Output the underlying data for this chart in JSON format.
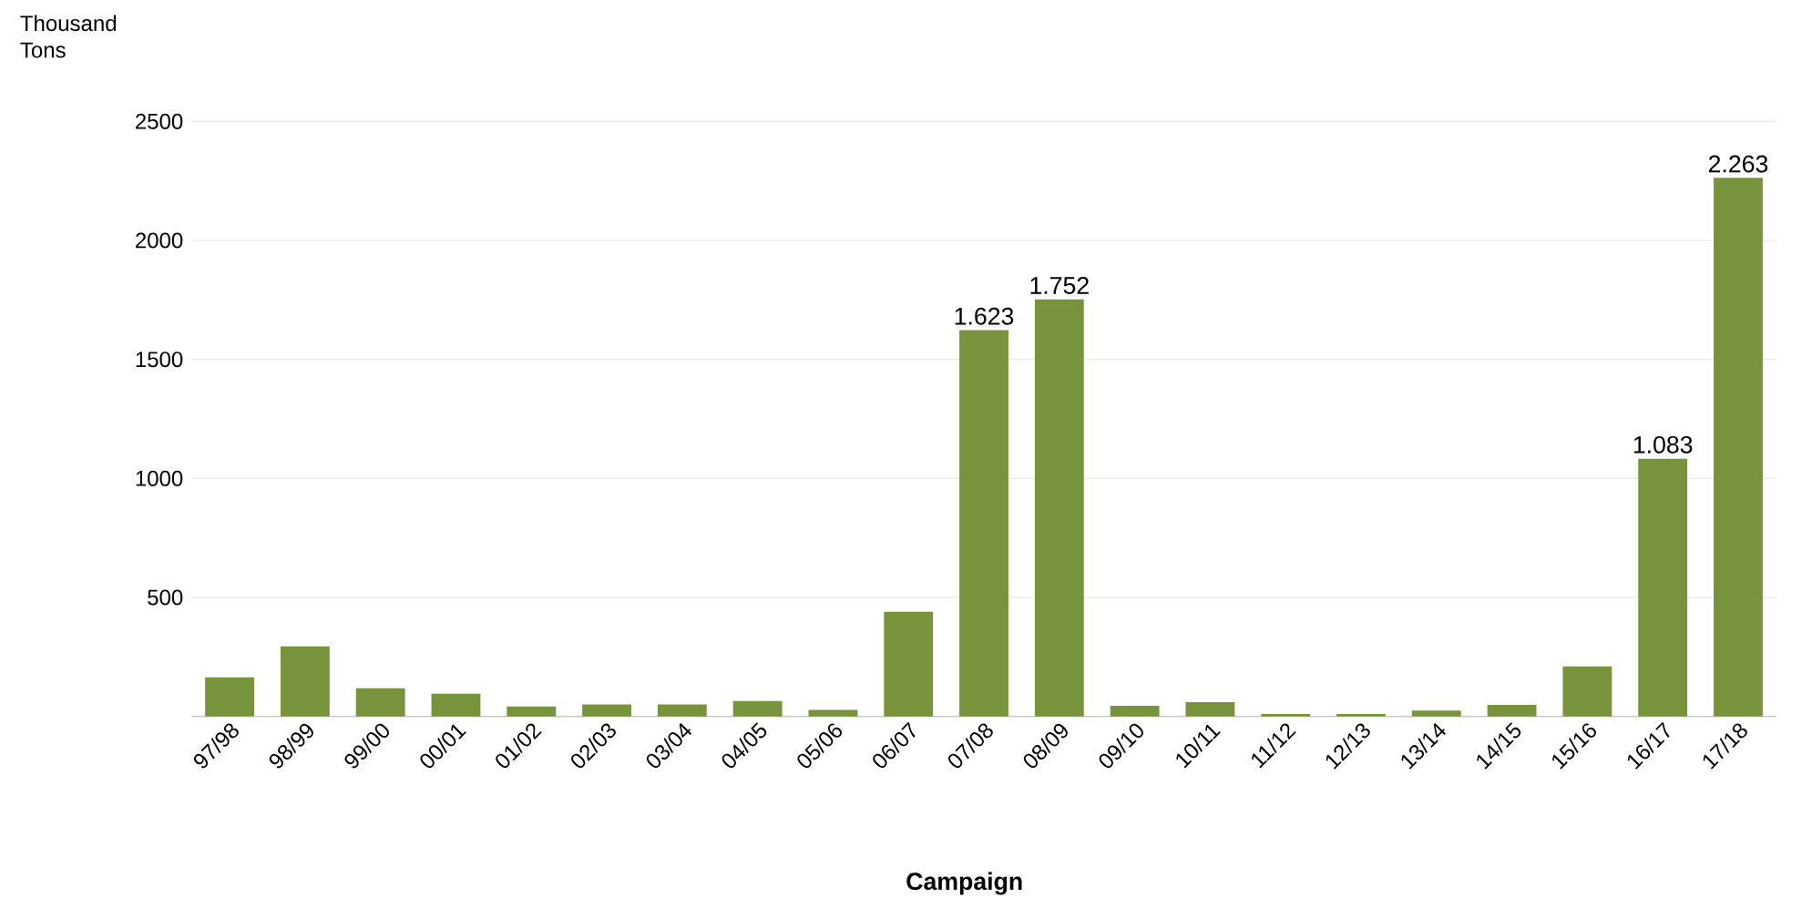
{
  "chart_data": {
    "type": "bar",
    "xlabel": "Campaign",
    "ylabel": "Thousand Tons",
    "categories": [
      "97/98",
      "98/99",
      "99/00",
      "00/01",
      "01/02",
      "02/03",
      "03/04",
      "04/05",
      "05/06",
      "06/07",
      "07/08",
      "08/09",
      "09/10",
      "10/11",
      "11/12",
      "12/13",
      "13/14",
      "14/15",
      "15/16",
      "16/17",
      "17/18"
    ],
    "values": [
      164,
      294,
      118,
      95,
      42,
      50,
      50,
      65,
      27,
      440,
      1623,
      1752,
      45,
      60,
      10,
      10,
      25,
      48,
      210,
      1083,
      2263
    ],
    "value_labels": [
      null,
      null,
      null,
      null,
      null,
      null,
      null,
      null,
      null,
      null,
      "1.623",
      "1.752",
      null,
      null,
      null,
      null,
      null,
      null,
      null,
      "1.083",
      "2.263"
    ],
    "color": "#77933c",
    "ylim": [
      0,
      2500
    ],
    "yticks": [
      500,
      1000,
      1500,
      2000,
      2500
    ],
    "grid": "y"
  }
}
